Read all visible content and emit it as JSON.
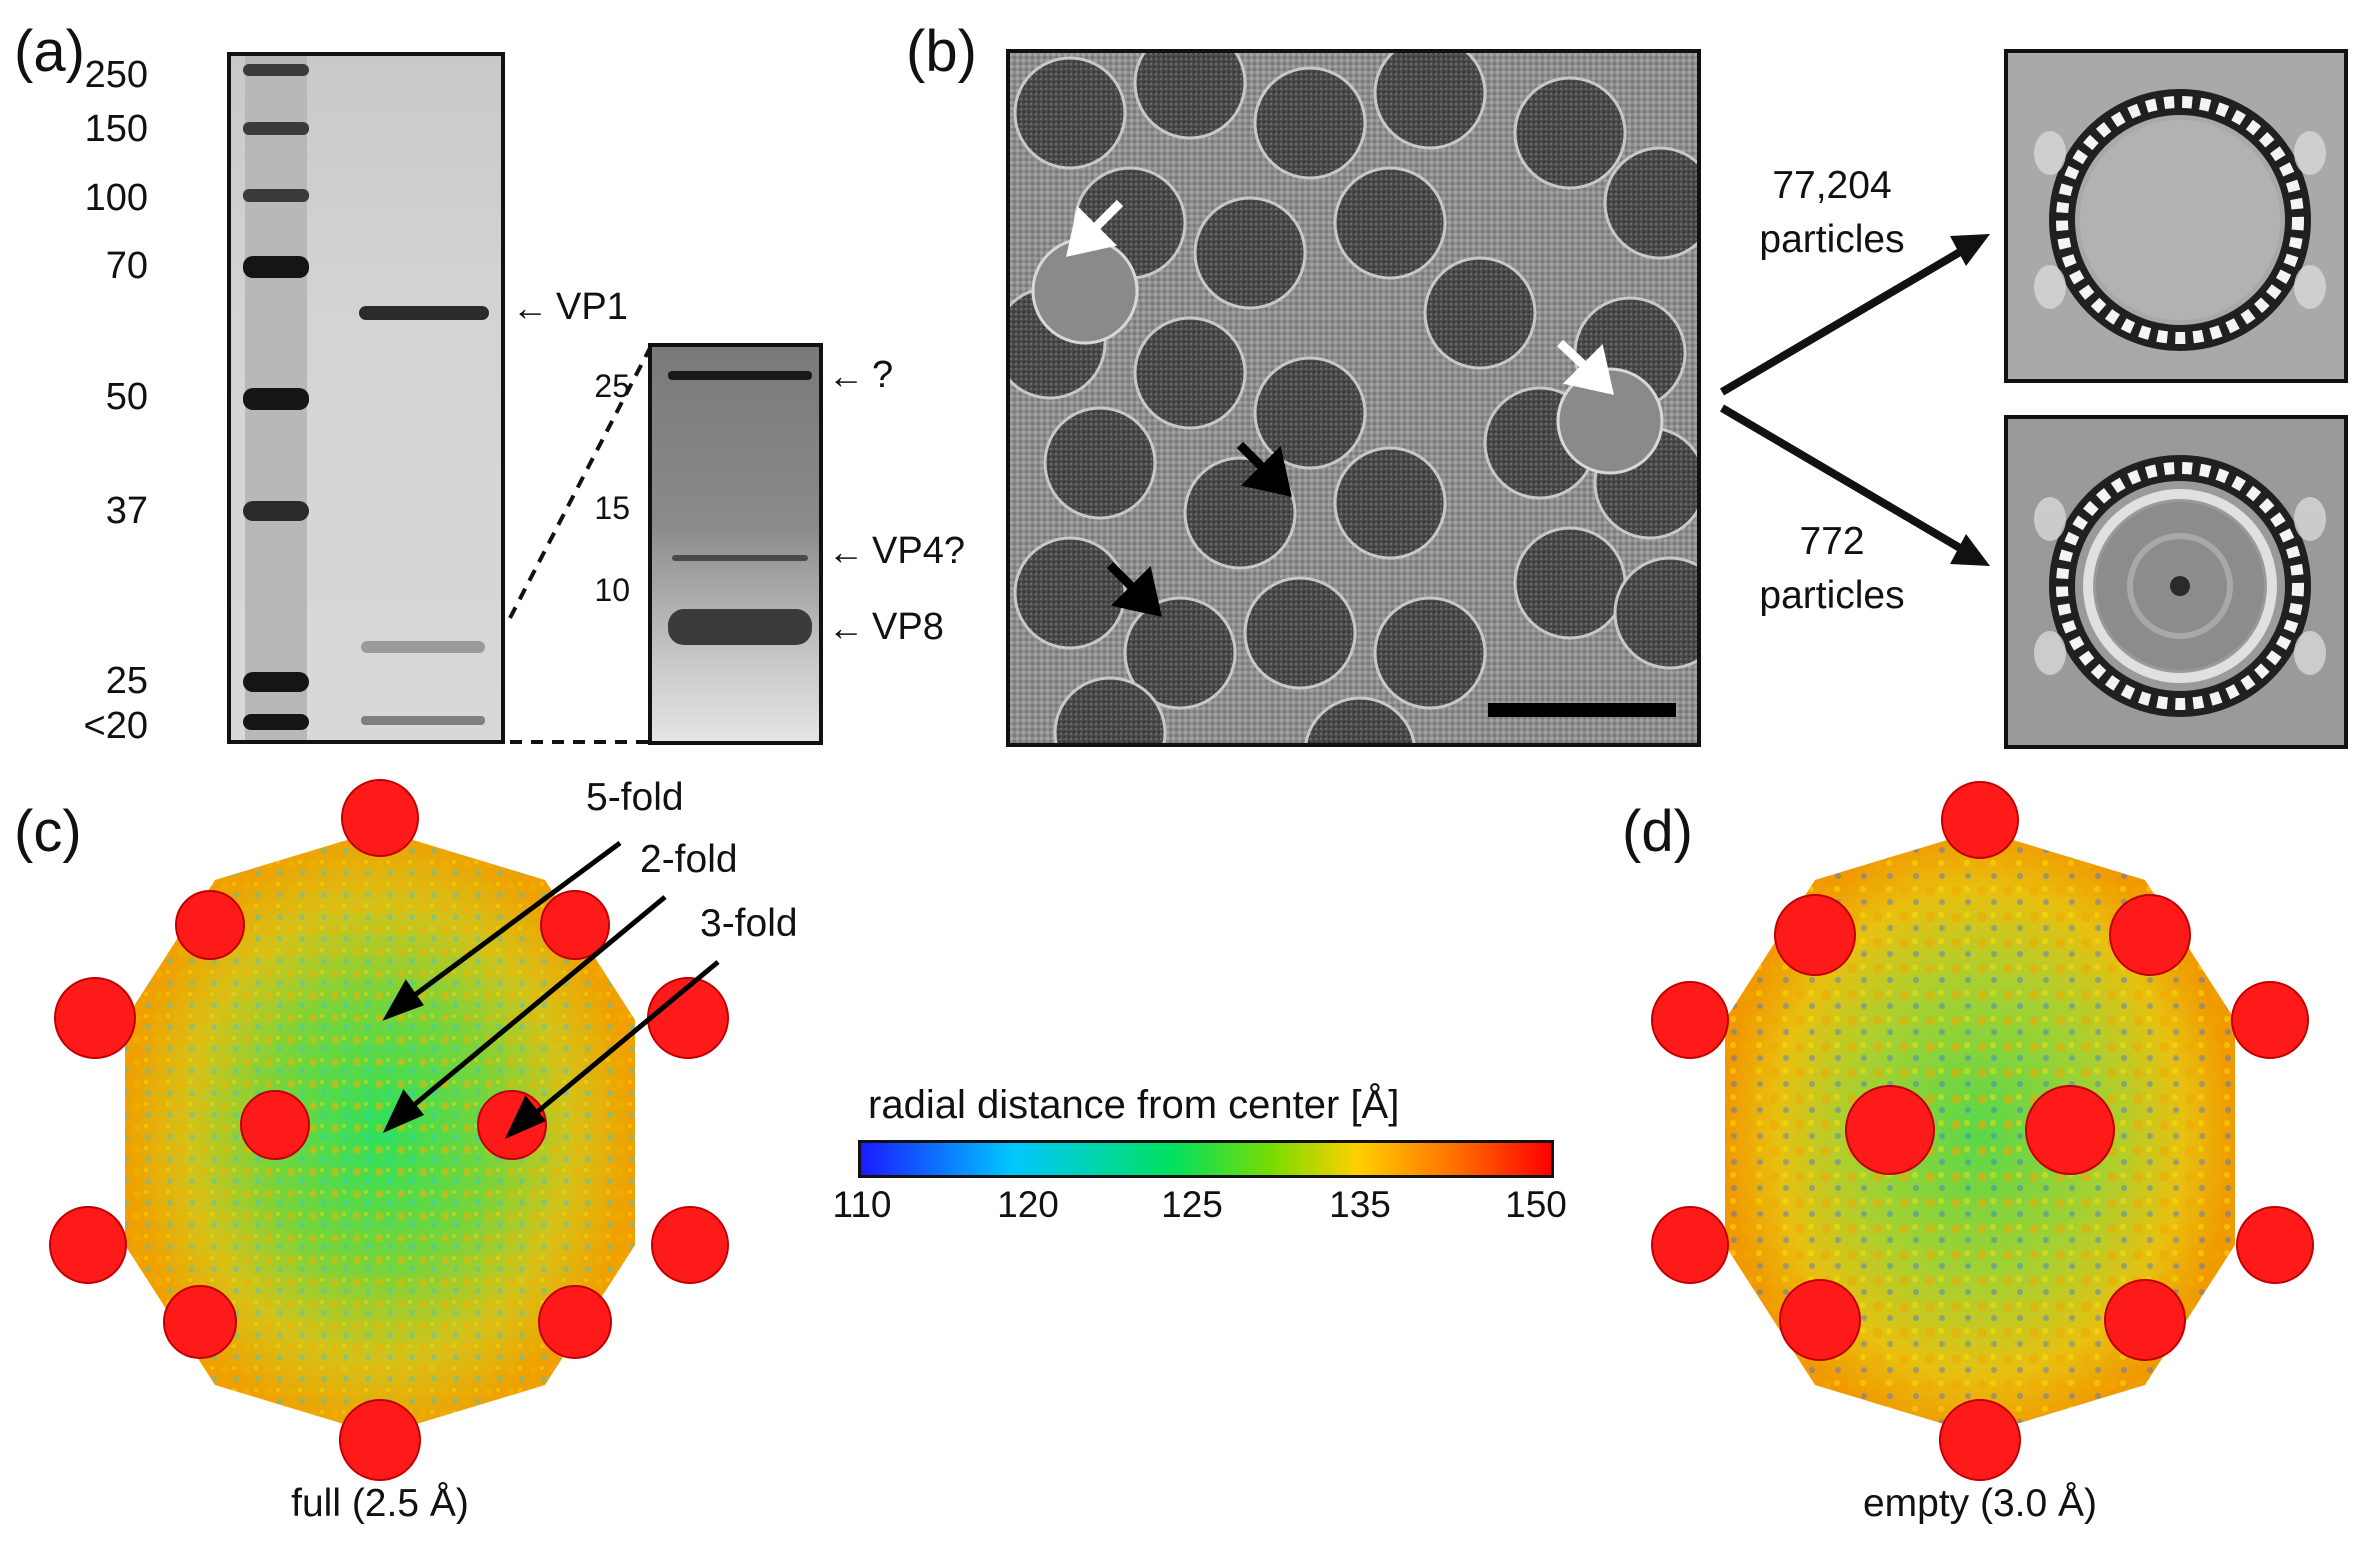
{
  "figure": {
    "panel_a": {
      "letter": "(a)",
      "ladder_markers": [
        "250",
        "150",
        "100",
        "70",
        "50",
        "37",
        "25",
        "<20"
      ],
      "band_labels": [
        "VP1"
      ],
      "inset": {
        "markers": [
          "25",
          "15",
          "10"
        ],
        "band_labels": [
          "?",
          "VP4?",
          "VP8"
        ]
      }
    },
    "panel_b": {
      "letter": "(b)",
      "full_count": "77,204",
      "full_unit": "particles",
      "empty_count": "772",
      "empty_unit": "particles"
    },
    "panel_c": {
      "letter": "(c)",
      "axis_labels": [
        "5-fold",
        "2-fold",
        "3-fold"
      ],
      "caption": "full (2.5 Å)"
    },
    "panel_d": {
      "letter": "(d)",
      "caption": "empty (3.0 Å)"
    },
    "colorbar": {
      "title": "radial distance from center [Å]",
      "ticks": [
        "110",
        "120",
        "125",
        "135",
        "150"
      ],
      "colors": [
        "#1a1aff",
        "#00c8ff",
        "#00e060",
        "#7ddc00",
        "#ffd000",
        "#ff7000",
        "#ff0000"
      ]
    }
  }
}
